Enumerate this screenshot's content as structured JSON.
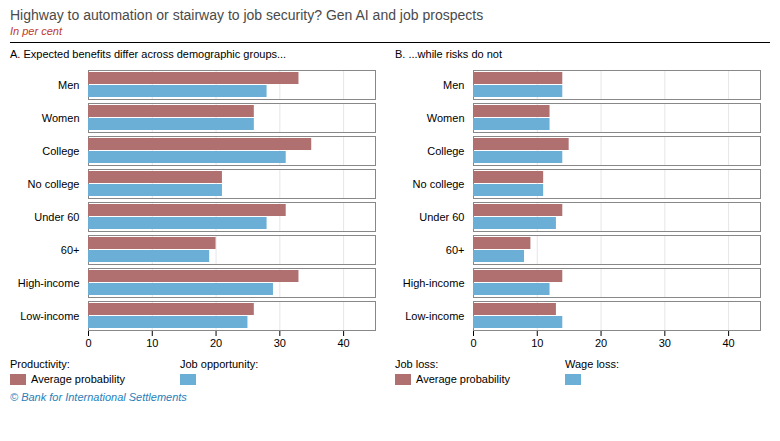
{
  "title": "Highway to automation or stairway to job security? Gen AI and job prospects",
  "subtitle": "In per cent",
  "caption": "© Bank for International Settlements",
  "chart_data": [
    {
      "type": "bar",
      "orientation": "horizontal",
      "title": "A. Expected benefits differ across demographic groups...",
      "categories": [
        "Men",
        "Women",
        "College",
        "No college",
        "Under 60",
        "60+",
        "High-income",
        "Low-income"
      ],
      "series": [
        {
          "name": "Productivity:",
          "color": "#b07070",
          "values": [
            33,
            26,
            35,
            21,
            31,
            20,
            33,
            26
          ]
        },
        {
          "name": "Job opportunity:",
          "color": "#6baed6",
          "values": [
            28,
            26,
            31,
            21,
            28,
            19,
            29,
            25
          ]
        }
      ],
      "annotation": "Average probability",
      "xlim": [
        0,
        45
      ],
      "xticks": [
        0,
        10,
        20,
        30,
        40
      ],
      "grid": true
    },
    {
      "type": "bar",
      "orientation": "horizontal",
      "title": "B. ...while risks do not",
      "categories": [
        "Men",
        "Women",
        "College",
        "No college",
        "Under 60",
        "60+",
        "High-income",
        "Low-income"
      ],
      "series": [
        {
          "name": "Job loss:",
          "color": "#b07070",
          "values": [
            14,
            12,
            15,
            11,
            14,
            9,
            14,
            13
          ]
        },
        {
          "name": "Wage loss:",
          "color": "#6baed6",
          "values": [
            14,
            12,
            14,
            11,
            13,
            8,
            12,
            14
          ]
        }
      ],
      "annotation": "Average probability",
      "xlim": [
        0,
        45
      ],
      "xticks": [
        0,
        10,
        20,
        30,
        40
      ],
      "grid": true
    }
  ]
}
